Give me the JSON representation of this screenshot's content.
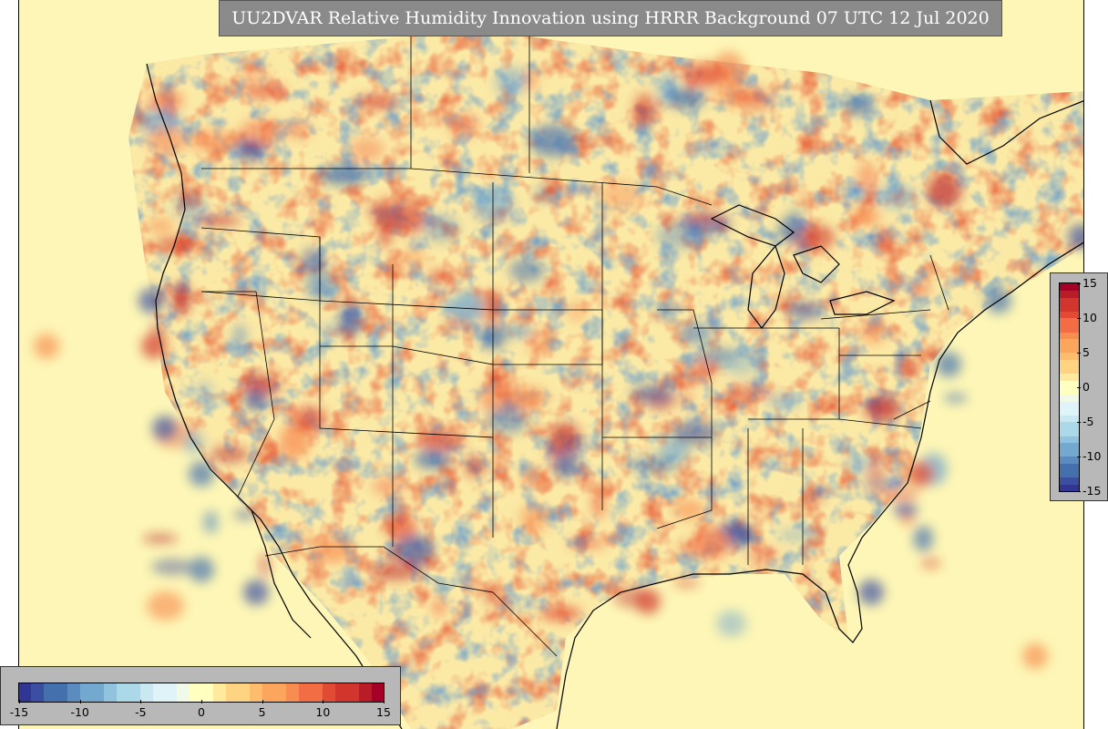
{
  "title": "UU2DVAR Relative Humidity Innovation using HRRR Background 07 UTC 12 Jul 2020",
  "colormap": {
    "name": "RdYlBu_r",
    "min": -15,
    "max": 15,
    "levels": 30,
    "colors": [
      "#313695",
      "#3b4fa0",
      "#4470ae",
      "#5b8bbf",
      "#74a9cf",
      "#91c2de",
      "#abd9e9",
      "#c9e8f1",
      "#e0f3f8",
      "#f1f9e9",
      "#ffffbf",
      "#fee99d",
      "#fed483",
      "#fdbd6c",
      "#fca55d",
      "#f88d52",
      "#f26d44",
      "#e34a33",
      "#d1352b",
      "#b81c26",
      "#a50026"
    ]
  },
  "colorbar_vertical": {
    "tick_labels": [
      "15",
      "10",
      "5",
      "0",
      "-5",
      "-10",
      "-15"
    ],
    "tick_values": [
      15,
      10,
      5,
      0,
      -5,
      -10,
      -15
    ]
  },
  "colorbar_horizontal": {
    "tick_labels": [
      "-15",
      "-10",
      "-5",
      "0",
      "5",
      "10",
      "15"
    ],
    "tick_values": [
      -15,
      -10,
      -5,
      0,
      5,
      10,
      15
    ]
  }
}
